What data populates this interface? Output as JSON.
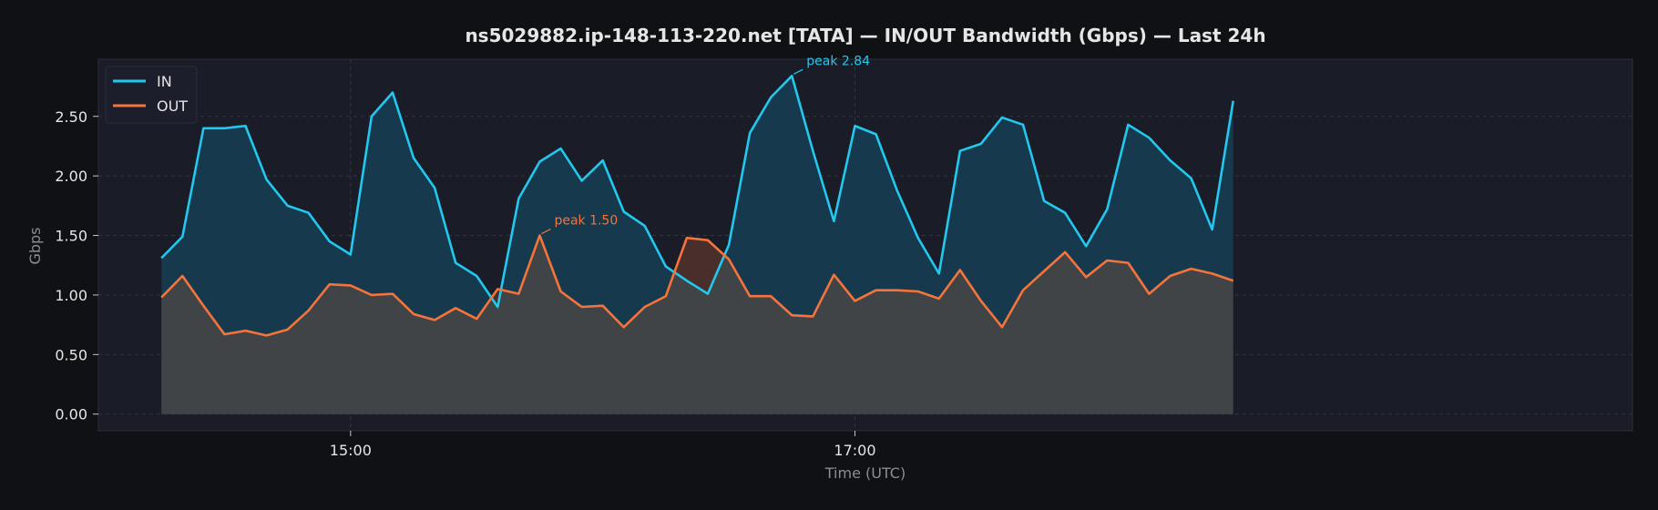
{
  "chart_data": {
    "type": "line",
    "title": "ns5029882.ip-148-113-220.net [TATA] — IN/OUT Bandwidth (Gbps) — Last 24h",
    "xlabel": "Time (UTC)",
    "ylabel": "Gbps",
    "x_start": "14:15",
    "x_step_minutes": 5,
    "x_ticks": [
      "15:00",
      "17:00"
    ],
    "x_tick_minutes": [
      900,
      1020
    ],
    "xlim_minutes": [
      840,
      1205
    ],
    "ylim": [
      -0.14,
      2.98
    ],
    "y_ticks": [
      0.0,
      0.5,
      1.0,
      1.5,
      2.0,
      2.5
    ],
    "y_tick_labels": [
      "0.00",
      "0.50",
      "1.00",
      "1.50",
      "2.00",
      "2.50"
    ],
    "grid": true,
    "legend_position": "top-left",
    "series": [
      {
        "name": "IN",
        "color": "#22c8ee",
        "values": [
          1.31,
          1.49,
          2.4,
          2.4,
          2.42,
          1.97,
          1.75,
          1.69,
          1.45,
          1.34,
          2.5,
          2.7,
          2.15,
          1.9,
          1.27,
          1.16,
          0.9,
          1.81,
          2.12,
          2.23,
          1.96,
          2.13,
          1.7,
          1.58,
          1.24,
          1.12,
          1.01,
          1.42,
          2.36,
          2.66,
          2.84,
          2.21,
          1.62,
          2.42,
          2.35,
          1.88,
          1.48,
          1.18,
          2.21,
          2.27,
          2.49,
          2.43,
          1.79,
          1.69,
          1.41,
          1.72,
          2.43,
          2.32,
          2.13,
          1.98,
          1.55,
          2.63
        ]
      },
      {
        "name": "OUT",
        "color": "#f4743b",
        "values": [
          0.98,
          1.16,
          0.91,
          0.67,
          0.7,
          0.66,
          0.71,
          0.87,
          1.09,
          1.08,
          1.0,
          1.01,
          0.84,
          0.79,
          0.89,
          0.8,
          1.05,
          1.01,
          1.5,
          1.03,
          0.9,
          0.91,
          0.73,
          0.9,
          0.99,
          1.48,
          1.46,
          1.3,
          0.99,
          0.99,
          0.83,
          0.82,
          1.17,
          0.95,
          1.04,
          1.04,
          1.03,
          0.97,
          1.21,
          0.95,
          0.73,
          1.04,
          1.2,
          1.36,
          1.15,
          1.29,
          1.27,
          1.01,
          1.16,
          1.22,
          1.18,
          1.12
        ]
      }
    ],
    "annotations": [
      {
        "series": "IN",
        "index": 30,
        "text": "peak 2.84",
        "color": "#22c8ee"
      },
      {
        "series": "OUT",
        "index": 18,
        "text": "peak 1.50",
        "color": "#f4743b"
      }
    ]
  },
  "colors": {
    "background": "#0f1115",
    "plot_background": "#1a1c27",
    "in_fill": "#163b50",
    "out_fill": "#444547",
    "out_over_in_fill": "#4a2e2b",
    "grid": "#3a3c46",
    "text_primary": "#e6e6e6",
    "text_muted": "#8a8d96",
    "legend_bg": "#1c1f2b"
  }
}
